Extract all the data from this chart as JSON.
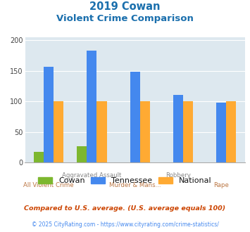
{
  "title_line1": "2019 Cowan",
  "title_line2": "Violent Crime Comparison",
  "categories_top": [
    "",
    "Aggravated Assault",
    "",
    "Robbery",
    ""
  ],
  "categories_bot": [
    "All Violent Crime",
    "",
    "Murder & Mans...",
    "",
    "Rape"
  ],
  "cowan": [
    17,
    26,
    0,
    0,
    0
  ],
  "tennessee": [
    157,
    183,
    148,
    111,
    98
  ],
  "national": [
    100,
    100,
    100,
    100,
    100
  ],
  "cowan_color": "#7db72f",
  "tennessee_color": "#4488ee",
  "national_color": "#ffaa33",
  "bg_color": "#dde8ef",
  "title_color": "#1a6fad",
  "xlabel_top_color": "#888888",
  "xlabel_bot_color": "#bb7744",
  "ylabel_ticks": [
    0,
    50,
    100,
    150,
    200
  ],
  "ylim": [
    0,
    205
  ],
  "footnote1": "Compared to U.S. average. (U.S. average equals 100)",
  "footnote2": "© 2025 CityRating.com - https://www.cityrating.com/crime-statistics/",
  "footnote1_color": "#cc4400",
  "footnote2_color": "#4488ee",
  "legend_label_color": "#111111"
}
